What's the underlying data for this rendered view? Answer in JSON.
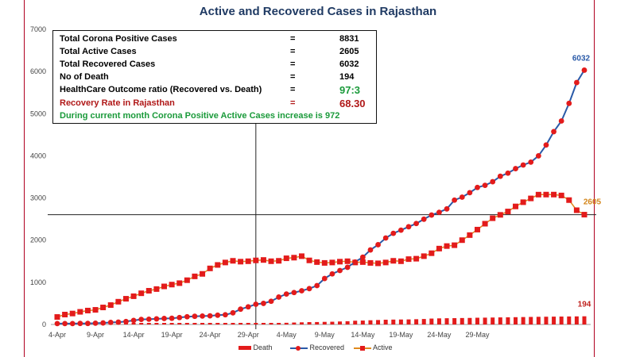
{
  "colors": {
    "death": "#e31b1b",
    "recovered": "#2a5aa8",
    "active": "#e31b1b",
    "active_label": "#d4861a",
    "recovered_label": "#2a5aa8",
    "death_label": "#c0221e",
    "ratio_green": "#1a9a3a",
    "rate_red": "#b01818",
    "note_green": "#1a9a3a"
  },
  "info_box": {
    "rows": [
      {
        "label": "Total Corona Positive Cases",
        "eq": "=",
        "value": "8831"
      },
      {
        "label": "Total Active Cases",
        "eq": "=",
        "value": "2605"
      },
      {
        "label": "Total Recovered Cases",
        "eq": "=",
        "value": "6032"
      },
      {
        "label": "No of Death",
        "eq": "=",
        "value": "194"
      },
      {
        "label": "HealthCare Outcome ratio (Recovered vs. Death)",
        "eq": "=",
        "value": "97:3"
      },
      {
        "label": "Recovery Rate in Rajasthan",
        "eq": "=",
        "value": "68.30"
      }
    ],
    "note": "During current month Corona Positive Active Cases increase is 972"
  },
  "chart_data": {
    "type": "line",
    "title": "Active and Recovered Cases in Rajasthan",
    "xlabel": "",
    "ylabel": "",
    "ylim": [
      0,
      7000
    ],
    "yticks": [
      0,
      1000,
      2000,
      3000,
      4000,
      5000,
      6000,
      7000
    ],
    "x_tick_labels": [
      "4-Apr",
      "9-Apr",
      "14-Apr",
      "19-Apr",
      "24-Apr",
      "29-Apr",
      "4-May",
      "9-May",
      "14-May",
      "19-May",
      "24-May",
      "29-May"
    ],
    "x_start": "4-Apr",
    "x_end": "1-Jun",
    "grid": false,
    "legend": "bottom",
    "reference_line_y": 2605,
    "series": [
      {
        "name": "Recovered",
        "end_label": "6032",
        "values": [
          21,
          21,
          21,
          25,
          25,
          30,
          36,
          49,
          55,
          70,
          96,
          120,
          125,
          133,
          142,
          147,
          164,
          183,
          194,
          200,
          205,
          220,
          230,
          276,
          363,
          418,
          480,
          500,
          551,
          650,
          722,
          757,
          800,
          850,
          922,
          1090,
          1200,
          1280,
          1356,
          1482,
          1596,
          1768,
          1892,
          2051,
          2162,
          2237,
          2318,
          2394,
          2497,
          2596,
          2660,
          2741,
          2950,
          3020,
          3126,
          3250,
          3300,
          3386,
          3515,
          3590,
          3696,
          3782,
          3850,
          4000,
          4257,
          4574,
          4826,
          5244,
          5738,
          6032
        ]
      },
      {
        "name": "Active",
        "end_label": "2605",
        "values": [
          178,
          235,
          260,
          300,
          330,
          347,
          404,
          460,
          540,
          610,
          670,
          740,
          800,
          840,
          903,
          946,
          980,
          1050,
          1141,
          1200,
          1330,
          1412,
          1470,
          1510,
          1490,
          1500,
          1520,
          1530,
          1500,
          1510,
          1570,
          1585,
          1620,
          1520,
          1480,
          1460,
          1470,
          1490,
          1500,
          1470,
          1480,
          1460,
          1450,
          1470,
          1510,
          1500,
          1550,
          1560,
          1620,
          1690,
          1800,
          1860,
          1880,
          2000,
          2120,
          2250,
          2390,
          2520,
          2600,
          2680,
          2800,
          2900,
          2990,
          3080,
          3081,
          3081,
          3060,
          2950,
          2710,
          2605
        ]
      },
      {
        "name": "Death",
        "end_label": "194",
        "values": [
          0,
          0,
          0,
          0,
          0,
          0,
          0,
          0,
          1,
          2,
          3,
          3,
          3,
          3,
          3,
          4,
          4,
          5,
          5,
          6,
          8,
          9,
          11,
          14,
          17,
          20,
          23,
          25,
          27,
          32,
          40,
          46,
          51,
          56,
          58,
          62,
          65,
          71,
          77,
          89,
          93,
          100,
          106,
          113,
          116,
          118,
          120,
          125,
          130,
          140,
          145,
          148,
          150,
          153,
          155,
          160,
          162,
          165,
          168,
          170,
          173,
          176,
          179,
          182,
          184,
          186,
          188,
          190,
          192,
          194
        ]
      }
    ]
  }
}
